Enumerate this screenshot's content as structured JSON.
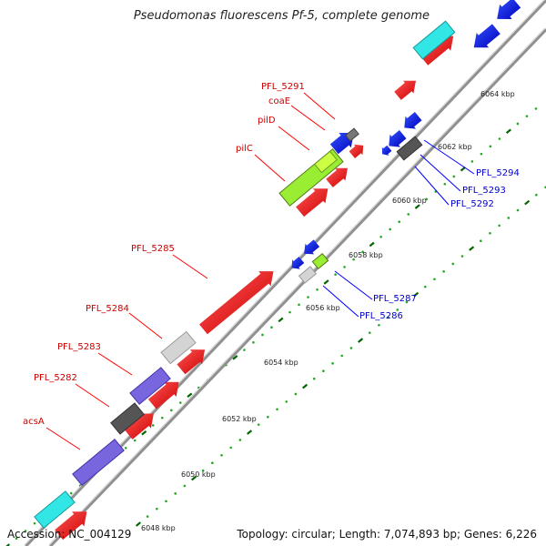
{
  "title": "Pseudomonas fluorescens Pf-5, complete genome",
  "footer": {
    "accession_label": "Accession:",
    "accession": "NC_004129",
    "topology": "Topology: circular; Length: 7,074,893 bp; Genes: 6,226"
  },
  "colors": {
    "forward_strand": "#ff0000",
    "reverse_strand": "#0000ff",
    "backbone": "#999999",
    "tick": "#008800",
    "label_red": "#cc0000",
    "label_blue": "#0000cc"
  },
  "kbp_labels": [
    "6048 kbp",
    "6050 kbp",
    "6052 kbp",
    "6054 kbp",
    "6056 kbp",
    "6058 kbp",
    "6060 kbp",
    "6062 kbp",
    "6064 kbp"
  ],
  "gene_labels_left": [
    "PFL_5291",
    "coaE",
    "pilD",
    "pilC",
    "PFL_5285",
    "PFL_5284",
    "PFL_5283",
    "PFL_5282",
    "acsA"
  ],
  "gene_labels_right": [
    "PFL_5294",
    "PFL_5293",
    "PFL_5292",
    "PFL_5287",
    "PFL_5286"
  ]
}
